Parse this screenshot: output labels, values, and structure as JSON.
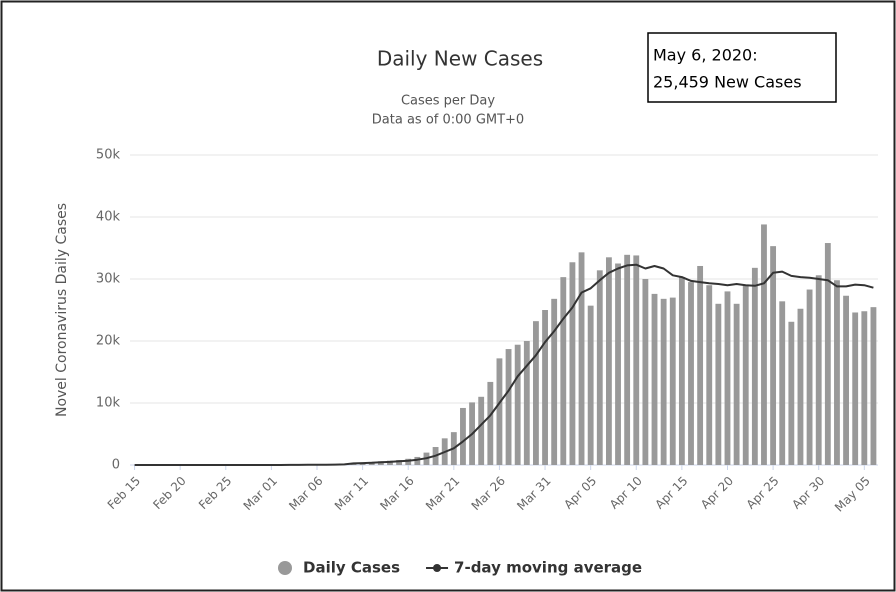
{
  "chart_data": {
    "type": "bar",
    "title": "Daily New Cases",
    "subtitle": [
      "Cases per Day",
      "Data as of 0:00 GMT+0"
    ],
    "y_label": "Novel Coronavirus Daily Cases",
    "annotations": [
      "May 6, 2020:",
      "25,459 New Cases"
    ],
    "categories": [
      "Feb 15",
      null,
      null,
      null,
      null,
      "Feb 20",
      null,
      null,
      null,
      null,
      "Feb 25",
      null,
      null,
      null,
      null,
      "Mar 01",
      null,
      null,
      null,
      null,
      "Mar 06",
      null,
      null,
      null,
      null,
      "Mar 11",
      null,
      null,
      null,
      null,
      "Mar 16",
      null,
      null,
      null,
      null,
      "Mar 21",
      null,
      null,
      null,
      null,
      "Mar 26",
      null,
      null,
      null,
      null,
      "Mar 31",
      null,
      null,
      null,
      null,
      "Apr 05",
      null,
      null,
      null,
      null,
      "Apr 10",
      null,
      null,
      null,
      null,
      "Apr 15",
      null,
      null,
      null,
      null,
      "Apr 20",
      null,
      null,
      null,
      null,
      "Apr 25",
      null,
      null,
      null,
      null,
      "Apr 30",
      null,
      null,
      null,
      null,
      "May 05",
      null
    ],
    "series": [
      {
        "name": "Daily Cases",
        "type": "bar",
        "color": "#999999",
        "values": [
          0,
          0,
          0,
          0,
          1,
          0,
          2,
          0,
          0,
          0,
          0,
          0,
          0,
          1,
          0,
          10,
          20,
          25,
          30,
          70,
          60,
          120,
          110,
          180,
          300,
          380,
          500,
          600,
          700,
          800,
          1000,
          1300,
          2000,
          2900,
          4300,
          5300,
          9200,
          10100,
          11000,
          13400,
          17200,
          18700,
          19400,
          20000,
          23200,
          25000,
          26800,
          30300,
          32700,
          34300,
          25700,
          31400,
          33500,
          32500,
          33900,
          33800,
          30000,
          27600,
          26800,
          27000,
          30300,
          29500,
          32100,
          29000,
          26000,
          28000,
          26000,
          29000,
          31800,
          38800,
          35300,
          26400,
          23100,
          25200,
          28300,
          30600,
          35800,
          29800,
          27300,
          24600,
          24800,
          25459
        ]
      },
      {
        "name": "7-day moving average",
        "type": "line",
        "color": "#333333",
        "values": [
          0,
          0,
          0,
          0,
          0,
          0,
          0,
          0,
          0,
          0,
          0,
          0,
          0,
          0,
          0,
          5,
          8,
          12,
          20,
          30,
          40,
          55,
          70,
          100,
          250,
          300,
          350,
          450,
          500,
          600,
          700,
          850,
          1100,
          1500,
          2100,
          2700,
          3800,
          5000,
          6500,
          8000,
          10000,
          12000,
          14300,
          16000,
          17700,
          19800,
          21600,
          23600,
          25400,
          27800,
          28500,
          29800,
          31000,
          31700,
          32200,
          32300,
          31700,
          32100,
          31700,
          30600,
          30300,
          29700,
          29500,
          29300,
          29200,
          29000,
          29200,
          29000,
          28900,
          29300,
          31000,
          31200,
          30500,
          30300,
          30200,
          30000,
          29800,
          28800,
          28800,
          29100,
          29000,
          28600
        ]
      }
    ],
    "ylim": [
      0,
      50000
    ],
    "yticks": [
      0,
      {
        "value": 10000,
        "label": "10k"
      },
      {
        "value": 20000,
        "label": "20k"
      },
      {
        "value": 30000,
        "label": "30k"
      },
      {
        "value": 40000,
        "label": "40k"
      },
      {
        "value": 50000,
        "label": "50k"
      }
    ],
    "grid": true
  }
}
